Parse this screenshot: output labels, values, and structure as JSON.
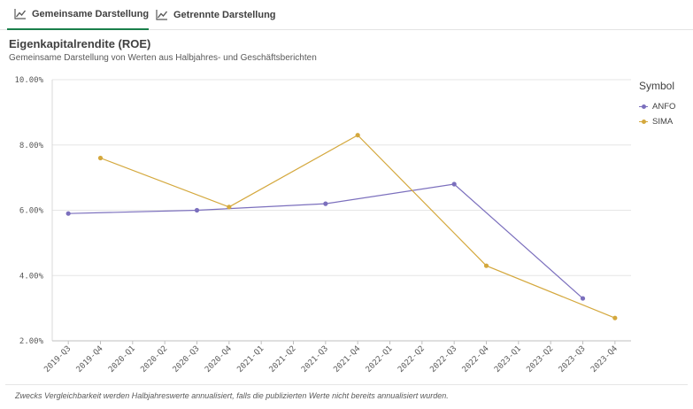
{
  "tabs": [
    {
      "label": "Gemeinsame Darstellung",
      "icon": "line-chart-icon",
      "active": true
    },
    {
      "label": "Getrennte Darstellung",
      "icon": "line-chart-icon",
      "active": false
    }
  ],
  "header": {
    "title": "Eigenkapitalrendite (ROE)",
    "subtitle": "Gemeinsame Darstellung von Werten aus Halbjahres- und Geschäftsberichten"
  },
  "legend": {
    "title": "Symbol",
    "items": [
      {
        "label": "ANFO",
        "color": "#7b6fbd"
      },
      {
        "label": "SIMA",
        "color": "#d4a83d"
      }
    ]
  },
  "footnote": "Zwecks Vergleichbarkeit werden Halbjahreswerte annualisiert, falls die publizierten Werte nicht bereits annualisiert wurden.",
  "chart_data": {
    "type": "line",
    "categories": [
      "2019-Q3",
      "2019-Q4",
      "2020-Q1",
      "2020-Q2",
      "2020-Q3",
      "2020-Q4",
      "2021-Q1",
      "2021-Q2",
      "2021-Q3",
      "2021-Q4",
      "2022-Q1",
      "2022-Q2",
      "2022-Q3",
      "2022-Q4",
      "2023-Q1",
      "2023-Q2",
      "2023-Q3",
      "2023-Q4"
    ],
    "yticks": [
      "2.00%",
      "4.00%",
      "6.00%",
      "8.00%",
      "10.00%"
    ],
    "ylim": [
      2,
      10
    ],
    "grid": true,
    "legend_position": "right",
    "series": [
      {
        "name": "ANFO",
        "color": "#7b6fbd",
        "points": [
          {
            "x": "2019-Q3",
            "y": 5.9
          },
          {
            "x": "2020-Q3",
            "y": 6.0
          },
          {
            "x": "2021-Q3",
            "y": 6.2
          },
          {
            "x": "2022-Q3",
            "y": 6.8
          },
          {
            "x": "2023-Q3",
            "y": 3.3
          }
        ]
      },
      {
        "name": "SIMA",
        "color": "#d4a83d",
        "points": [
          {
            "x": "2019-Q4",
            "y": 7.6
          },
          {
            "x": "2020-Q4",
            "y": 6.1
          },
          {
            "x": "2021-Q4",
            "y": 8.3
          },
          {
            "x": "2022-Q4",
            "y": 4.3
          },
          {
            "x": "2023-Q4",
            "y": 2.7
          }
        ]
      }
    ]
  }
}
